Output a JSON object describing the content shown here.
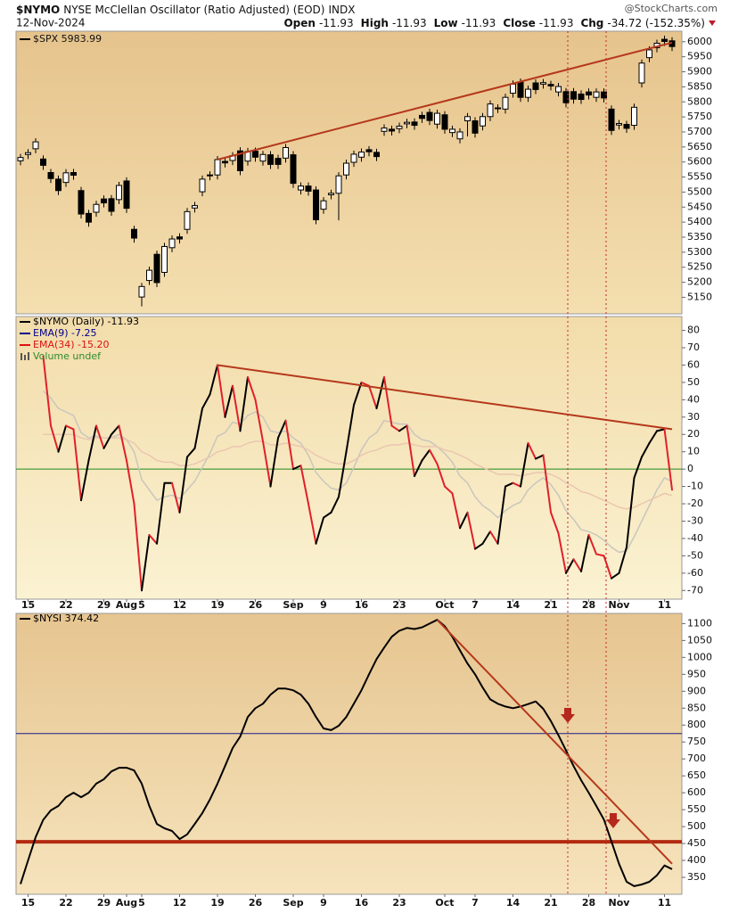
{
  "header": {
    "symbol": "$NYMO",
    "name": "NYSE McClellan Oscillator (Ratio Adjusted) (EOD)",
    "exchange": "INDX",
    "date": "12-Nov-2024",
    "source": "@StockCharts.com",
    "quote": [
      {
        "label": "Open",
        "value": -11.93
      },
      {
        "label": "High",
        "value": -11.93
      },
      {
        "label": "Low",
        "value": -11.93
      },
      {
        "label": "Close",
        "value": -11.93
      },
      {
        "label": "Chg",
        "value": "-34.72 (-152.35%)"
      }
    ]
  },
  "chart_data": [
    {
      "type": "candlestick",
      "legend": "$SPX 5983.99",
      "open": [
        5604,
        5625,
        5644,
        5610,
        5565,
        5543,
        5532,
        5565,
        5505,
        5429,
        5433,
        5477,
        5478,
        5475,
        5537,
        5376,
        5151,
        5206,
        5293,
        5233,
        5315,
        5351,
        5376,
        5447,
        5501,
        5557,
        5557,
        5602,
        5605,
        5637,
        5603,
        5636,
        5603,
        5624,
        5612,
        5613,
        5624,
        5507,
        5520,
        5507,
        5443,
        5491,
        5496,
        5557,
        5599,
        5616,
        5641,
        5632,
        5702,
        5709,
        5711,
        5727,
        5733,
        5755,
        5765,
        5726,
        5757,
        5698,
        5677,
        5737,
        5737,
        5720,
        5751,
        5778,
        5776,
        5829,
        5866,
        5815,
        5863,
        5859,
        5858,
        5833,
        5834,
        5834,
        5826,
        5833,
        5815,
        5833,
        5776,
        5723,
        5725,
        5722,
        5863,
        5947,
        5980,
        6008,
        6003
      ],
      "high": [
        5627,
        5643,
        5679,
        5622,
        5577,
        5555,
        5576,
        5577,
        5517,
        5441,
        5471,
        5489,
        5490,
        5534,
        5549,
        5388,
        5198,
        5252,
        5305,
        5331,
        5356,
        5363,
        5447,
        5467,
        5555,
        5569,
        5620,
        5614,
        5633,
        5649,
        5647,
        5648,
        5637,
        5636,
        5624,
        5660,
        5636,
        5532,
        5532,
        5519,
        5483,
        5508,
        5566,
        5608,
        5638,
        5645,
        5653,
        5644,
        5725,
        5721,
        5731,
        5744,
        5745,
        5767,
        5777,
        5774,
        5769,
        5721,
        5712,
        5763,
        5749,
        5763,
        5805,
        5792,
        5827,
        5871,
        5878,
        5854,
        5875,
        5876,
        5870,
        5863,
        5846,
        5846,
        5838,
        5845,
        5845,
        5845,
        5788,
        5740,
        5737,
        5794,
        5941,
        5985,
        6007,
        6020,
        6015
      ],
      "low": [
        5589,
        5610,
        5629,
        5574,
        5530,
        5490,
        5517,
        5541,
        5412,
        5385,
        5418,
        5449,
        5421,
        5460,
        5431,
        5332,
        5120,
        5191,
        5184,
        5218,
        5300,
        5329,
        5361,
        5432,
        5486,
        5539,
        5542,
        5582,
        5590,
        5556,
        5588,
        5601,
        5588,
        5577,
        5577,
        5598,
        5514,
        5492,
        5488,
        5393,
        5428,
        5476,
        5406,
        5542,
        5584,
        5601,
        5619,
        5603,
        5687,
        5688,
        5696,
        5712,
        5707,
        5730,
        5723,
        5711,
        5694,
        5683,
        5662,
        5685,
        5681,
        5705,
        5736,
        5763,
        5761,
        5814,
        5800,
        5800,
        5826,
        5844,
        5838,
        5818,
        5782,
        5794,
        5793,
        5808,
        5800,
        5798,
        5690,
        5708,
        5697,
        5707,
        5848,
        5932,
        5965,
        5986,
        5969
      ],
      "close": [
        5615,
        5631,
        5667,
        5589,
        5545,
        5505,
        5564,
        5556,
        5427,
        5400,
        5459,
        5464,
        5436,
        5522,
        5446,
        5347,
        5186,
        5240,
        5199,
        5319,
        5344,
        5344,
        5435,
        5455,
        5543,
        5554,
        5608,
        5597,
        5621,
        5571,
        5635,
        5616,
        5625,
        5592,
        5592,
        5648,
        5529,
        5520,
        5503,
        5408,
        5471,
        5496,
        5554,
        5596,
        5626,
        5633,
        5634,
        5618,
        5713,
        5703,
        5719,
        5732,
        5722,
        5745,
        5738,
        5762,
        5709,
        5709,
        5700,
        5751,
        5696,
        5751,
        5793,
        5780,
        5815,
        5859,
        5815,
        5842,
        5841,
        5864,
        5853,
        5851,
        5797,
        5809,
        5808,
        5823,
        5833,
        5813,
        5705,
        5728,
        5712,
        5782,
        5929,
        5973,
        5995,
        6001,
        5984
      ],
      "ylim": [
        5095,
        6035
      ],
      "yticks": [
        5150,
        5200,
        5250,
        5300,
        5350,
        5400,
        5450,
        5500,
        5550,
        5600,
        5650,
        5700,
        5750,
        5800,
        5850,
        5900,
        5950,
        6000
      ],
      "trendline": {
        "x": [
          26,
          86
        ],
        "values": [
          5608,
          5997
        ],
        "color": "#b5381c"
      }
    },
    {
      "type": "line",
      "categories": [
        null,
        "15",
        null,
        null,
        null,
        null,
        "22",
        null,
        null,
        null,
        null,
        "29",
        null,
        null,
        "Aug",
        null,
        "5",
        null,
        null,
        null,
        null,
        "12",
        null,
        null,
        null,
        null,
        "19",
        null,
        null,
        null,
        null,
        "26",
        null,
        null,
        null,
        null,
        "Sep",
        null,
        null,
        null,
        "9",
        null,
        null,
        null,
        null,
        "16",
        null,
        null,
        null,
        null,
        "23",
        null,
        null,
        null,
        null,
        null,
        "Oct",
        null,
        null,
        null,
        "7",
        null,
        null,
        null,
        null,
        "14",
        null,
        null,
        null,
        null,
        "21",
        null,
        null,
        null,
        null,
        "28",
        null,
        null,
        null,
        "Nov",
        null,
        null,
        null,
        null,
        null,
        "11",
        null
      ],
      "series": [
        {
          "name": "$NYMO (Daily) -11.93",
          "color": "#000000",
          "down_color": "#e0202a",
          "values": [
            null,
            null,
            null,
            65,
            25,
            10,
            25,
            23,
            -18,
            5,
            25,
            12,
            20,
            25,
            5,
            -20,
            -70,
            -38,
            -43,
            -8,
            -8,
            -25,
            7,
            12,
            35,
            43,
            60,
            30,
            48,
            22,
            53,
            40,
            16,
            -10,
            18,
            28,
            0,
            2,
            -20,
            -43,
            -28,
            -25,
            -16,
            10,
            37,
            50,
            48,
            35,
            53,
            25,
            22,
            25,
            -4,
            5,
            11,
            3,
            -10,
            -14,
            -34,
            -25,
            -46,
            -43,
            -36,
            -43,
            -10,
            -8,
            -10,
            15,
            6,
            8,
            -25,
            -37,
            -60,
            -52,
            -59,
            -38,
            -49,
            -50,
            -63,
            -60,
            -45,
            -5,
            7,
            15,
            22,
            23,
            -11.93
          ]
        },
        {
          "name": "EMA(9) -7.25",
          "color": "#00008b",
          "line_color": "#c9c6bd",
          "values": [
            null,
            null,
            null,
            45,
            41,
            35,
            33,
            31,
            21,
            18,
            19,
            18,
            18,
            20,
            17,
            10,
            -6,
            -12,
            -18,
            -16,
            -15,
            -17,
            -12,
            -7,
            1,
            9,
            19,
            21,
            27,
            26,
            31,
            33,
            30,
            22,
            21,
            22,
            18,
            15,
            8,
            -2,
            -7,
            -11,
            -12,
            -8,
            1,
            11,
            18,
            21,
            28,
            27,
            26,
            26,
            20,
            17,
            16,
            13,
            9,
            4,
            -4,
            -8,
            -16,
            -21,
            -24,
            -28,
            -24,
            -21,
            -19,
            -12,
            -8,
            -5,
            -9,
            -15,
            -24,
            -29,
            -35,
            -36,
            -38,
            -41,
            -45,
            -48,
            -47,
            -39,
            -30,
            -21,
            -12,
            -5,
            -7.25
          ]
        },
        {
          "name": "EMA(34) -15.20",
          "color": "#dd1111",
          "line_color": "#eac7b0",
          "values": [
            null,
            null,
            null,
            20,
            20,
            20,
            20,
            20,
            18,
            17,
            18,
            18,
            18,
            18,
            17,
            15,
            10,
            8,
            5,
            4,
            4,
            2,
            2,
            3,
            5,
            7,
            10,
            11,
            13,
            13,
            15,
            16,
            16,
            14,
            14,
            15,
            14,
            13,
            11,
            8,
            6,
            4,
            3,
            3,
            5,
            8,
            10,
            11,
            13,
            14,
            14,
            15,
            14,
            13,
            13,
            13,
            11,
            10,
            8,
            6,
            3,
            1,
            -1,
            -3,
            -3,
            -3,
            -4,
            -3,
            -2,
            -2,
            -3,
            -5,
            -8,
            -10,
            -13,
            -14,
            -16,
            -18,
            -20,
            -22,
            -23,
            -22,
            -20,
            -18,
            -16,
            -14,
            -15.2
          ]
        }
      ],
      "legend_extra": {
        "name": "Volume undef",
        "color": "#2e8b2e"
      },
      "ylim": [
        -75,
        88
      ],
      "yticks": [
        -70,
        -60,
        -50,
        -40,
        -30,
        -20,
        -10,
        0,
        10,
        20,
        30,
        40,
        50,
        60,
        70,
        80
      ],
      "hlines": [
        {
          "value": 0,
          "color": "#1f8a1f"
        }
      ],
      "trendline": {
        "x": [
          26,
          86
        ],
        "values": [
          60,
          23
        ],
        "color": "#b5381c"
      }
    },
    {
      "type": "line",
      "categories": [
        null,
        "15",
        null,
        null,
        null,
        null,
        "22",
        null,
        null,
        null,
        null,
        "29",
        null,
        null,
        "Aug",
        null,
        "5",
        null,
        null,
        null,
        null,
        "12",
        null,
        null,
        null,
        null,
        "19",
        null,
        null,
        null,
        null,
        "26",
        null,
        null,
        null,
        null,
        "Sep",
        null,
        null,
        null,
        "9",
        null,
        null,
        null,
        null,
        "16",
        null,
        null,
        null,
        null,
        "23",
        null,
        null,
        null,
        null,
        null,
        "Oct",
        null,
        null,
        null,
        "7",
        null,
        null,
        null,
        null,
        "14",
        null,
        null,
        null,
        null,
        "21",
        null,
        null,
        null,
        null,
        "28",
        null,
        null,
        null,
        "Nov",
        null,
        null,
        null,
        null,
        null,
        "11",
        null
      ],
      "series": [
        {
          "name": "$NYSI 374.42",
          "color": "#000000",
          "values": [
            330,
            400,
            469,
            520,
            548,
            561,
            587,
            600,
            587,
            600,
            627,
            640,
            663,
            674,
            674,
            666,
            627,
            561,
            508,
            495,
            487,
            463,
            477,
            508,
            540,
            580,
            627,
            679,
            732,
            766,
            824,
            850,
            863,
            890,
            908,
            908,
            903,
            890,
            863,
            824,
            790,
            785,
            798,
            824,
            863,
            903,
            950,
            995,
            1029,
            1061,
            1079,
            1087,
            1084,
            1089,
            1100,
            1111,
            1092,
            1061,
            1021,
            982,
            950,
            911,
            876,
            863,
            855,
            850,
            855,
            862,
            870,
            848,
            812,
            770,
            725,
            679,
            637,
            600,
            561,
            521,
            456,
            390,
            337,
            324,
            329,
            337,
            356,
            385,
            374.42
          ]
        }
      ],
      "ylim": [
        300,
        1130
      ],
      "yticks": [
        350,
        400,
        450,
        500,
        550,
        600,
        650,
        700,
        750,
        800,
        850,
        900,
        950,
        1000,
        1050,
        1100
      ],
      "hlines": [
        {
          "value": 775,
          "color": "#1a1a8c"
        },
        {
          "value": 455,
          "color": "#b22a10"
        }
      ],
      "trendline": {
        "x": [
          55,
          86
        ],
        "values": [
          1111,
          390
        ],
        "color": "#b5381c"
      }
    }
  ]
}
